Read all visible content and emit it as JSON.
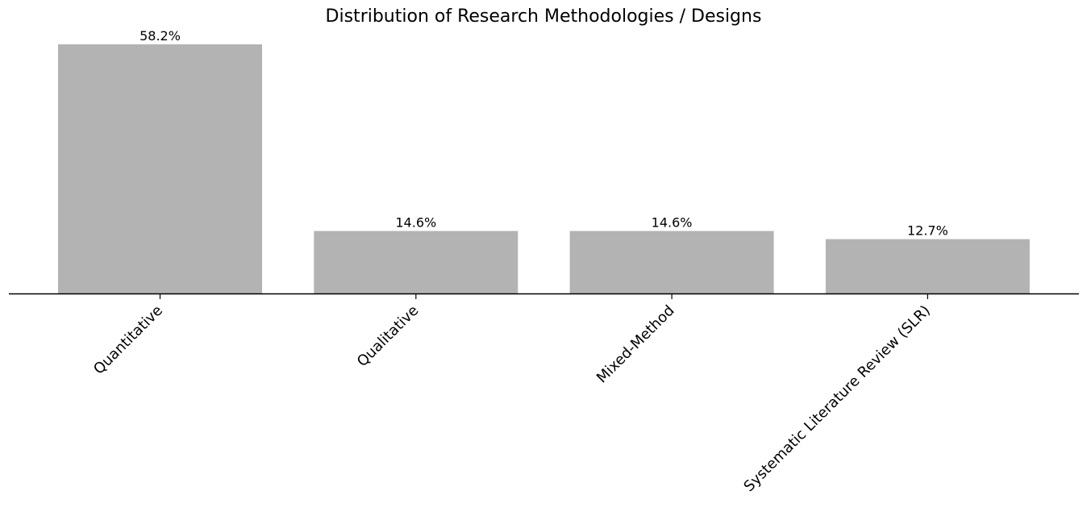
{
  "chart_data": {
    "type": "bar",
    "title": "Distribution of Research Methodologies / Designs",
    "xlabel": "",
    "ylabel": "",
    "categories": [
      "Quantitative",
      "Qualitative",
      "Mixed-Method",
      "Systematic Literature Review (SLR)"
    ],
    "values": [
      58.2,
      14.6,
      14.6,
      12.7
    ],
    "data_labels": [
      "58.2%",
      "14.6%",
      "14.6%",
      "12.7%"
    ],
    "ylim": [
      0,
      58.2
    ],
    "bar_color": "#b3b3b3",
    "axis_color": "#000000",
    "grid": false,
    "y_axis_visible": false,
    "tick_label_rotation": "45 degrees"
  }
}
